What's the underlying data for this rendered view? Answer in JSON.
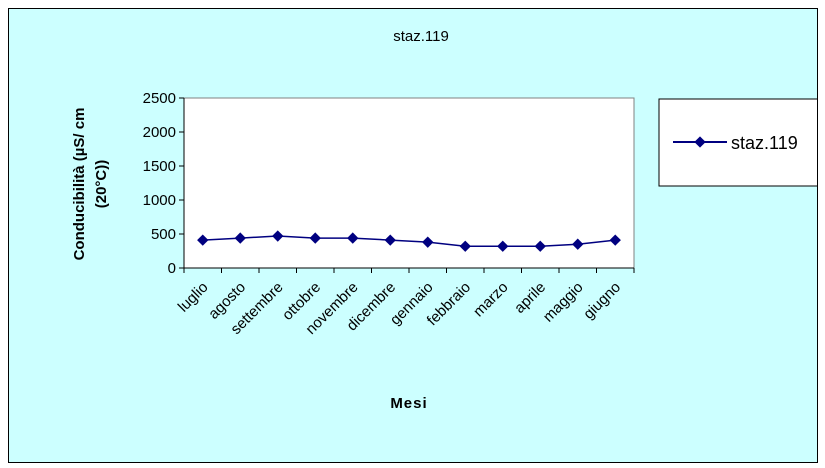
{
  "chart_data": {
    "type": "line",
    "title": "staz.119",
    "xlabel": "Mesi",
    "ylabel_lines": [
      "Conducibilità  (µS/ cm",
      "(20°C))"
    ],
    "categories": [
      "luglio",
      "agosto",
      "settembre",
      "ottobre",
      "novembre",
      "dicembre",
      "gennaio",
      "febbraio",
      "marzo",
      "aprile",
      "maggio",
      "giugno"
    ],
    "series": [
      {
        "name": "staz.119",
        "values": [
          410,
          440,
          470,
          440,
          440,
          410,
          380,
          320,
          320,
          320,
          350,
          410
        ]
      }
    ],
    "ylim": [
      0,
      2500
    ],
    "yticks": [
      0,
      500,
      1000,
      1500,
      2000,
      2500
    ],
    "ytick_labels": [
      "0",
      "500",
      "1000",
      "1500",
      "2000",
      "2500"
    ],
    "grid": false,
    "legend_position": "right",
    "colors": {
      "chart_background": "#ccffff",
      "plot_background": "#ffffff",
      "series": "#000080",
      "axis": "#000000"
    }
  }
}
